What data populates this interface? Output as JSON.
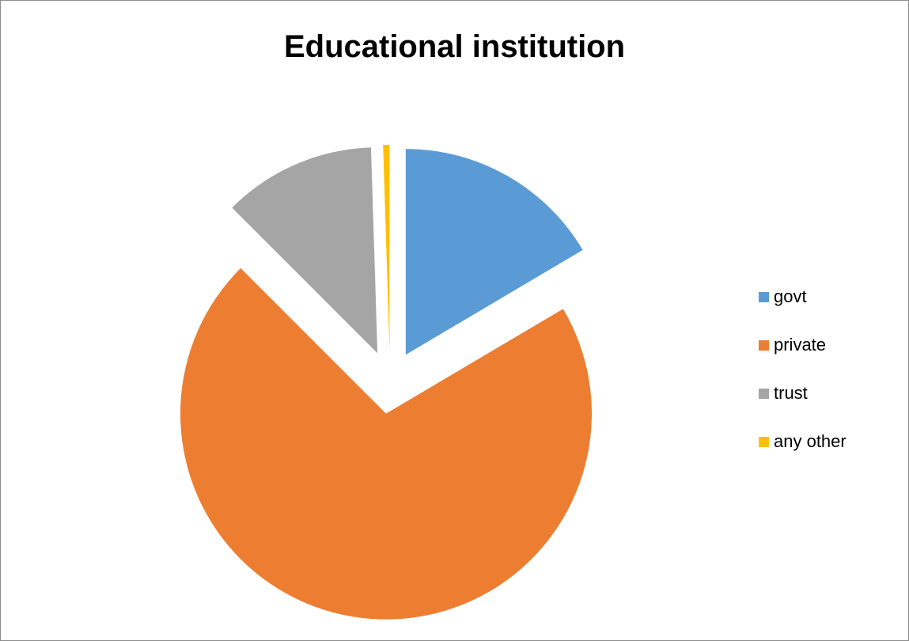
{
  "chart_data": {
    "type": "pie",
    "title": "Educational institution",
    "categories": [
      "govt",
      "private",
      "trust",
      "any other"
    ],
    "values": [
      16.5,
      71,
      12,
      0.5
    ],
    "colors": [
      "#5b9bd5",
      "#ed7d31",
      "#a5a5a5",
      "#ffc000"
    ],
    "exploded": true,
    "legend_position": "right"
  }
}
